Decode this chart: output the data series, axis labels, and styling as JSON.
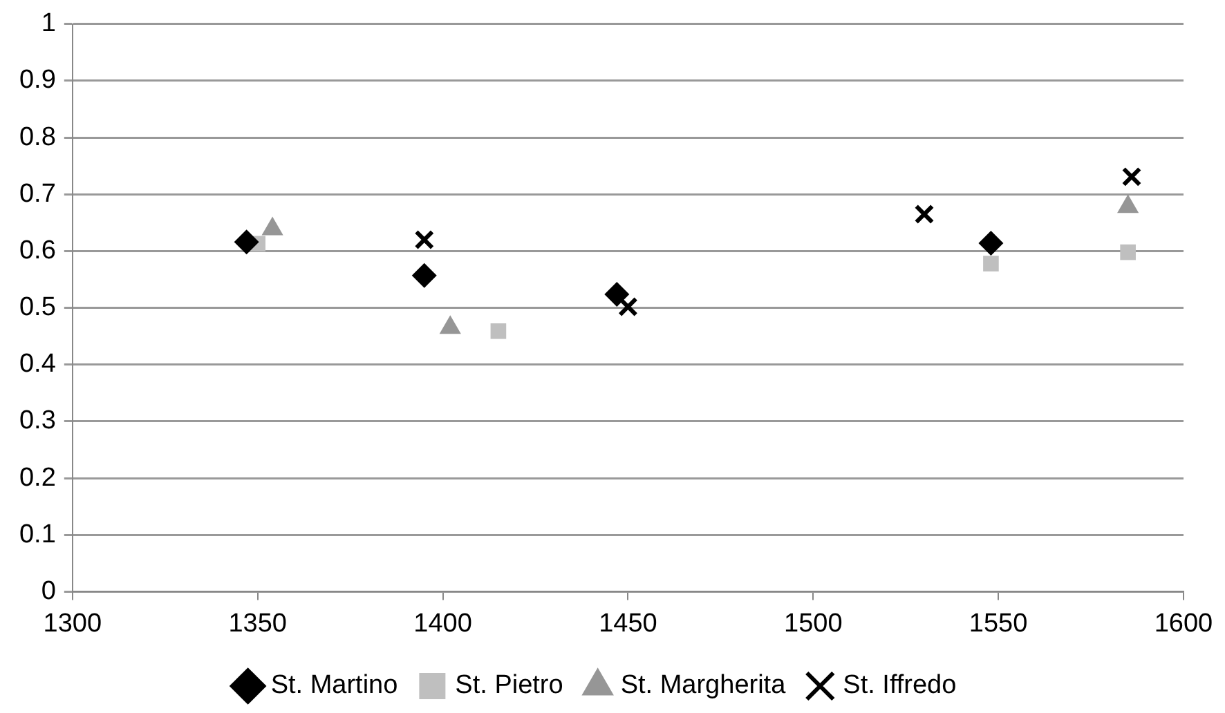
{
  "chart_data": {
    "type": "scatter",
    "xlim": [
      1300,
      1600
    ],
    "xticks": [
      1300,
      1350,
      1400,
      1450,
      1500,
      1550,
      1600
    ],
    "ylim": [
      0,
      1
    ],
    "yticks": [
      0,
      0.1,
      0.2,
      0.3,
      0.4,
      0.5,
      0.6,
      0.7,
      0.8,
      0.9,
      1
    ],
    "grid": "y",
    "legend": "bottom",
    "series": [
      {
        "name": "St. Martino",
        "color": "#000000",
        "marker": "diamond",
        "x": [
          1347,
          1395,
          1447,
          1548
        ],
        "values": [
          0.616,
          0.557,
          0.524,
          0.614
        ]
      },
      {
        "name": "St. Pietro",
        "color": "#bfbfbf",
        "marker": "square",
        "x": [
          1350,
          1415,
          1548,
          1585
        ],
        "values": [
          0.613,
          0.459,
          0.578,
          0.598
        ]
      },
      {
        "name": "St. Margherita",
        "color": "#969696",
        "marker": "triangle",
        "x": [
          1354,
          1402,
          1585
        ],
        "values": [
          0.639,
          0.465,
          0.678
        ]
      },
      {
        "name": "St. Iffredo",
        "color": "#000000",
        "marker": "cross",
        "x": [
          1395,
          1450,
          1530,
          1586
        ],
        "values": [
          0.62,
          0.502,
          0.665,
          0.731
        ]
      }
    ]
  }
}
